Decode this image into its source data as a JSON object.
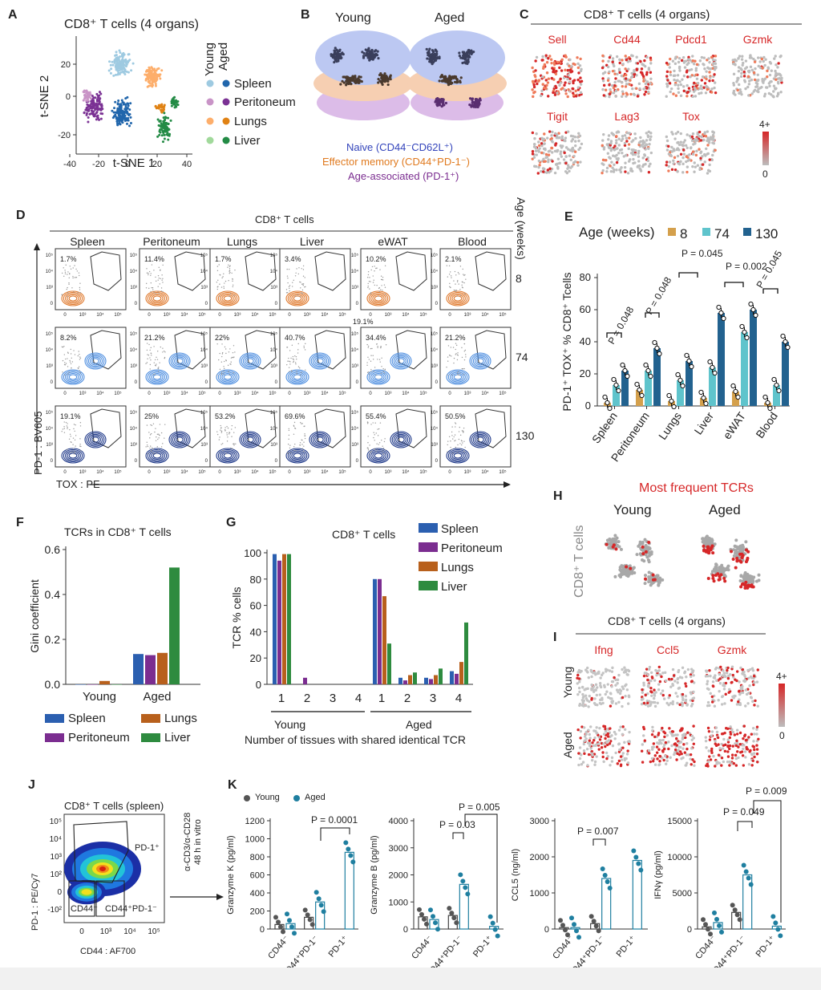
{
  "letters": {
    "a": "A",
    "b": "B",
    "c": "C",
    "d": "D",
    "e": "E",
    "f": "F",
    "g": "G",
    "h": "H",
    "i": "I",
    "j": "J",
    "k": "K"
  },
  "panelA": {
    "title": "CD8⁺ T cells (4 organs)",
    "xlabel": "t-SNE 1",
    "ylabel": "t-SNE 2",
    "xticks": [
      "-40",
      "-20",
      "0",
      "20",
      "40"
    ],
    "yticks": [
      "20",
      "0",
      "-20"
    ],
    "col_young": "Young",
    "col_aged": "Aged",
    "legend": [
      {
        "label": "Spleen",
        "young": "#9ecae1",
        "aged": "#2166ac"
      },
      {
        "label": "Peritoneum",
        "young": "#c994c7",
        "aged": "#7b3294"
      },
      {
        "label": "Lungs",
        "young": "#fdae6b",
        "aged": "#e08214"
      },
      {
        "label": "Liver",
        "young": "#a1d99b",
        "aged": "#238b45"
      }
    ]
  },
  "panelB": {
    "young": "Young",
    "aged": "Aged",
    "naive": "Naive (CD44⁻CD62L⁺)",
    "effector": "Effector memory (CD44⁺PD-1⁻)",
    "age_assoc": "Age-associated (PD-1⁺)"
  },
  "panelC": {
    "title": "CD8⁺ T cells (4 organs)",
    "genes_row1": [
      "Sell",
      "Cd44",
      "Pdcd1",
      "Gzmk"
    ],
    "genes_row2": [
      "Tigit",
      "Lag3",
      "Tox"
    ],
    "scale_max": "4+",
    "scale_min": "0"
  },
  "panelD": {
    "title": "CD8⁺ T cells",
    "age_label": "Age (weeks)",
    "tissues": [
      "Spleen",
      "Peritoneum",
      "Lungs",
      "Liver",
      "eWAT",
      "Blood"
    ],
    "ages": [
      "8",
      "74",
      "130"
    ],
    "pcts": [
      [
        "1.7%",
        "11.4%",
        "1.7%",
        "3.4%",
        "10.2%",
        "2.1%"
      ],
      [
        "8.2%",
        "21.2%",
        "22%",
        "40.7%",
        "34.4%",
        "21.2%"
      ],
      [
        "19.1%",
        "25%",
        "53.2%",
        "69.6%",
        "55.4%",
        "50.5%"
      ]
    ],
    "extra_pct": "19.1%",
    "yaxis": "PD-1 : BV605",
    "xaxis": "TOX : PE"
  },
  "panelE": {
    "legend_title": "Age (weeks)",
    "ylabel": "PD-1⁺ TOX⁺ % CD8⁺ Tcells",
    "yticks": [
      "0",
      "20",
      "40",
      "60",
      "80"
    ],
    "pvals": [
      "P = 0.048",
      "P = 0.048",
      "P = 0.045",
      "P = 0.002",
      "P = 0.045"
    ],
    "chart_data": {
      "type": "bar",
      "categories": [
        "Spleen",
        "Peritoneum",
        "Lungs",
        "Liver",
        "eWAT",
        "Blood"
      ],
      "series": [
        {
          "name": "8",
          "color": "#d4a04c",
          "values": [
            2,
            10,
            3,
            5,
            9,
            2
          ]
        },
        {
          "name": "74",
          "color": "#5fc4cc",
          "values": [
            13,
            22,
            16,
            24,
            46,
            13
          ]
        },
        {
          "name": "130",
          "color": "#22628f",
          "values": [
            22,
            36,
            28,
            58,
            60,
            40
          ]
        }
      ],
      "ylim": [
        0,
        80
      ]
    }
  },
  "panelF": {
    "title": "TCRs in CD8⁺ T cells",
    "ylabel": "Gini coefficient",
    "yticks": [
      "0.0",
      "0.2",
      "0.4",
      "0.6"
    ],
    "legend": [
      {
        "label": "Spleen",
        "color": "#2b5fb0"
      },
      {
        "label": "Lungs",
        "color": "#b8601c"
      },
      {
        "label": "Peritoneum",
        "color": "#7b2d90"
      },
      {
        "label": "Liver",
        "color": "#2e8b3f"
      }
    ],
    "chart_data": {
      "type": "bar",
      "categories": [
        "Young",
        "Aged"
      ],
      "series": [
        {
          "name": "Spleen",
          "values": [
            0.0,
            0.135
          ]
        },
        {
          "name": "Peritoneum",
          "values": [
            0.0,
            0.13
          ]
        },
        {
          "name": "Lungs",
          "values": [
            0.015,
            0.14
          ]
        },
        {
          "name": "Liver",
          "values": [
            0.0,
            0.52
          ]
        }
      ],
      "ylim": [
        0,
        0.6
      ]
    }
  },
  "panelG": {
    "title": "CD8⁺ T cells",
    "ylabel": "TCR % cells",
    "yticks": [
      "0",
      "20",
      "40",
      "60",
      "80",
      "100"
    ],
    "xlabel": "Number of tissues with shared identical TCR",
    "group_young": "Young",
    "group_aged": "Aged",
    "legend": [
      {
        "label": "Spleen",
        "color": "#2b5fb0"
      },
      {
        "label": "Peritoneum",
        "color": "#7b2d90"
      },
      {
        "label": "Lungs",
        "color": "#b8601c"
      },
      {
        "label": "Liver",
        "color": "#2e8b3f"
      }
    ],
    "chart_data": {
      "type": "bar",
      "categories": [
        "1",
        "2",
        "3",
        "4",
        "1",
        "2",
        "3",
        "4"
      ],
      "series": [
        {
          "name": "Spleen",
          "values": [
            99,
            0,
            0,
            0,
            80,
            5,
            5,
            10
          ]
        },
        {
          "name": "Peritoneum",
          "values": [
            94,
            5,
            0,
            0,
            80,
            3,
            4,
            8
          ]
        },
        {
          "name": "Lungs",
          "values": [
            99,
            0,
            0,
            0,
            67,
            7,
            7,
            17
          ]
        },
        {
          "name": "Liver",
          "values": [
            99,
            0,
            0,
            0,
            31,
            9,
            12,
            47
          ]
        }
      ],
      "ylim": [
        0,
        100
      ]
    }
  },
  "panelH": {
    "title": "Most frequent TCRs",
    "young": "Young",
    "aged": "Aged",
    "side": "CD8⁺ T cells"
  },
  "panelI": {
    "title": "CD8⁺ T cells (4 organs)",
    "genes": [
      "Ifng",
      "Ccl5",
      "Gzmk"
    ],
    "rows": [
      "Young",
      "Aged"
    ],
    "scale_max": "4+",
    "scale_min": "0"
  },
  "panelJ": {
    "title": "CD8⁺ T cells (spleen)",
    "ylabel": "PD-1 : PE/Cy7",
    "xlabel": "CD44 : AF700",
    "gate_pd1": "PD-1⁺",
    "gate_cd44neg": "CD44⁻",
    "gate_cd44pos": "CD44⁺PD-1⁻",
    "arrow_line1": "α-CD3/α-CD28",
    "arrow_line2": "48 h in vitro"
  },
  "panelK": {
    "legend_young": "Young",
    "legend_aged": "Aged",
    "categories": [
      "CD44⁻",
      "CD44⁺PD-1⁻",
      "PD-1⁺"
    ],
    "charts": [
      {
        "ylabel": "Granzyme K (pg/ml)",
        "yticks": [
          "0",
          "200",
          "400",
          "600",
          "800",
          "1000",
          "1200"
        ],
        "pvals": [
          "P = 0.0001"
        ],
        "chart_data": {
          "type": "bar",
          "ylim": [
            0,
            1200
          ],
          "young": [
            50,
            130,
            null
          ],
          "aged": [
            60,
            300,
            850
          ]
        }
      },
      {
        "ylabel": "Granzyme B (pg/ml)",
        "yticks": [
          "0",
          "1000",
          "2000",
          "3000",
          "4000"
        ],
        "pvals": [
          "P = 0.03",
          "P = 0.005"
        ],
        "chart_data": {
          "type": "bar",
          "ylim": [
            0,
            4000
          ],
          "young": [
            450,
            500,
            null
          ],
          "aged": [
            350,
            1650,
            100
          ]
        }
      },
      {
        "ylabel": "CCL5 (ng/ml)",
        "yticks": [
          "0",
          "1000",
          "2000",
          "3000"
        ],
        "pvals": [
          "P = 0.007"
        ],
        "chart_data": {
          "type": "bar",
          "ylim": [
            0,
            3000
          ],
          "young": [
            40,
            150,
            null
          ],
          "aged": [
            40,
            1400,
            1900
          ]
        }
      },
      {
        "ylabel": "IFNγ (pg/ml)",
        "yticks": [
          "0",
          "5000",
          "10000",
          "15000"
        ],
        "pvals": [
          "P = 0.049",
          "P = 0.009"
        ],
        "chart_data": {
          "type": "bar",
          "ylim": [
            0,
            15000
          ],
          "young": [
            300,
            2300,
            null
          ],
          "aged": [
            900,
            7500,
            400
          ]
        }
      }
    ]
  }
}
